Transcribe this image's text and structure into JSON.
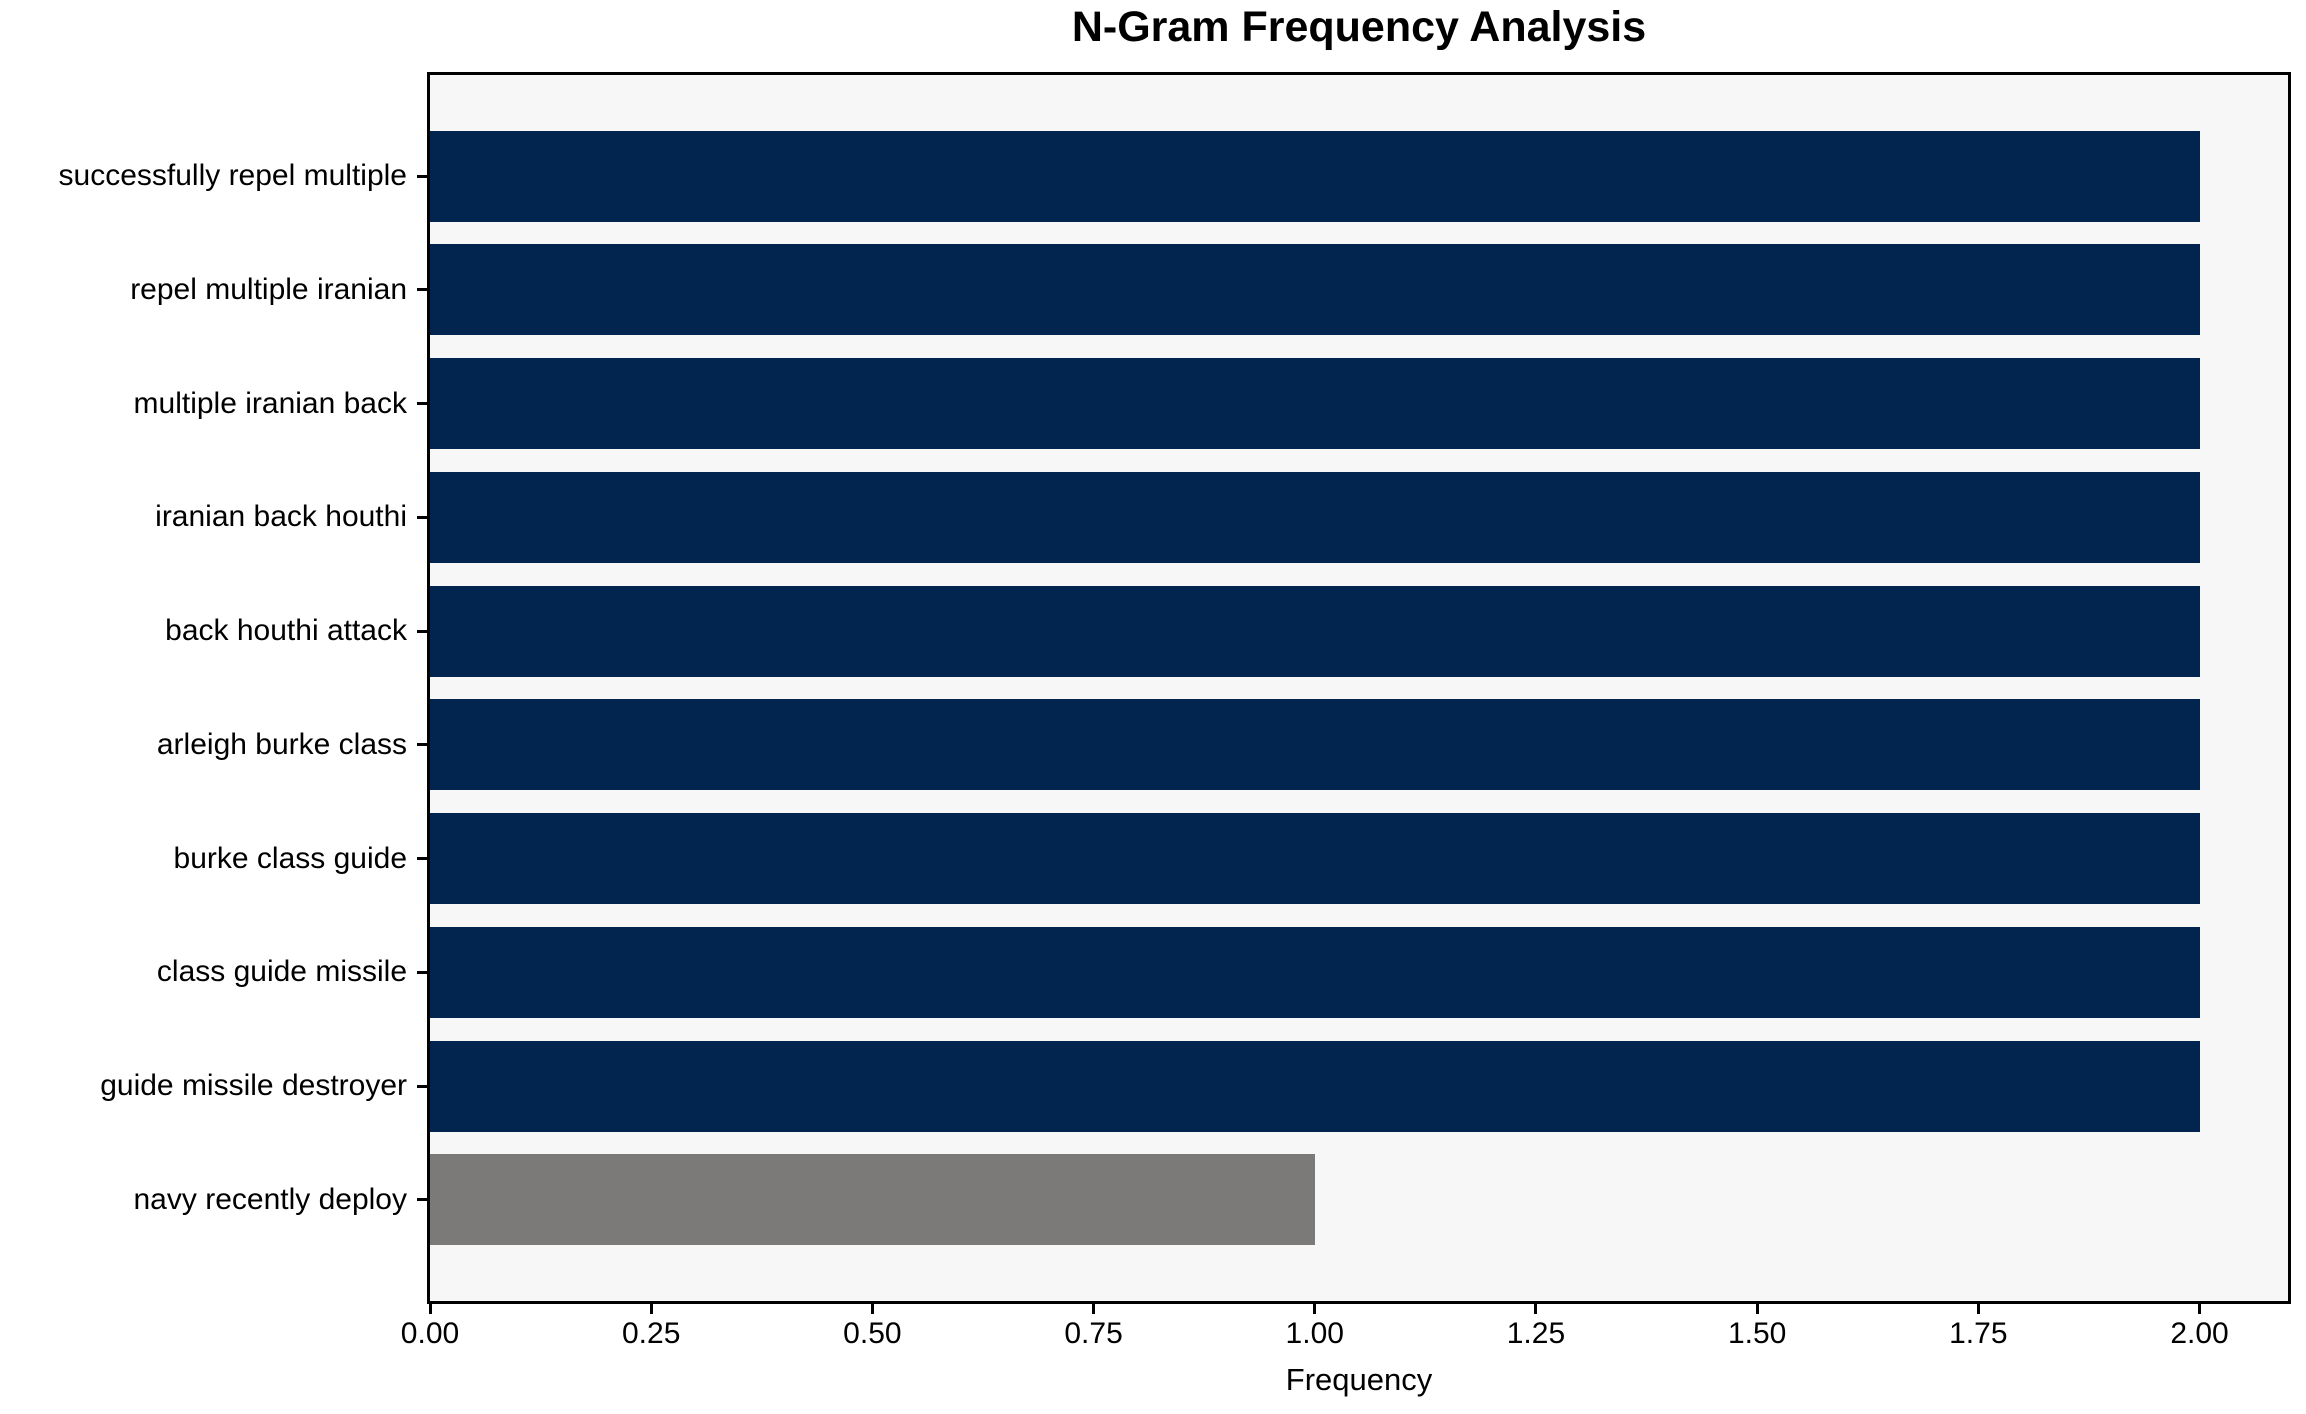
{
  "chart_data": {
    "type": "bar",
    "orientation": "horizontal",
    "title": "N-Gram Frequency Analysis",
    "xlabel": "Frequency",
    "ylabel": "",
    "categories": [
      "successfully repel multiple",
      "repel multiple iranian",
      "multiple iranian back",
      "iranian back houthi",
      "back houthi attack",
      "arleigh burke class",
      "burke class guide",
      "class guide missile",
      "guide missile destroyer",
      "navy recently deploy"
    ],
    "values": [
      2,
      2,
      2,
      2,
      2,
      2,
      2,
      2,
      2,
      1
    ],
    "bar_colors": [
      "#02254f",
      "#02254f",
      "#02254f",
      "#02254f",
      "#02254f",
      "#02254f",
      "#02254f",
      "#02254f",
      "#02254f",
      "#7b7a78"
    ],
    "xlim": [
      0,
      2.1
    ],
    "xtick_values": [
      0,
      0.25,
      0.5,
      0.75,
      1.0,
      1.25,
      1.5,
      1.75,
      2.0
    ],
    "xtick_labels": [
      "0.00",
      "0.25",
      "0.50",
      "0.75",
      "1.00",
      "1.25",
      "1.50",
      "1.75",
      "2.00"
    ],
    "grid": false,
    "legend_position": "none",
    "colors": {
      "plot_background": "#f7f7f7",
      "figure_background": "#ffffff",
      "spine": "#000000",
      "text": "#000000"
    }
  }
}
